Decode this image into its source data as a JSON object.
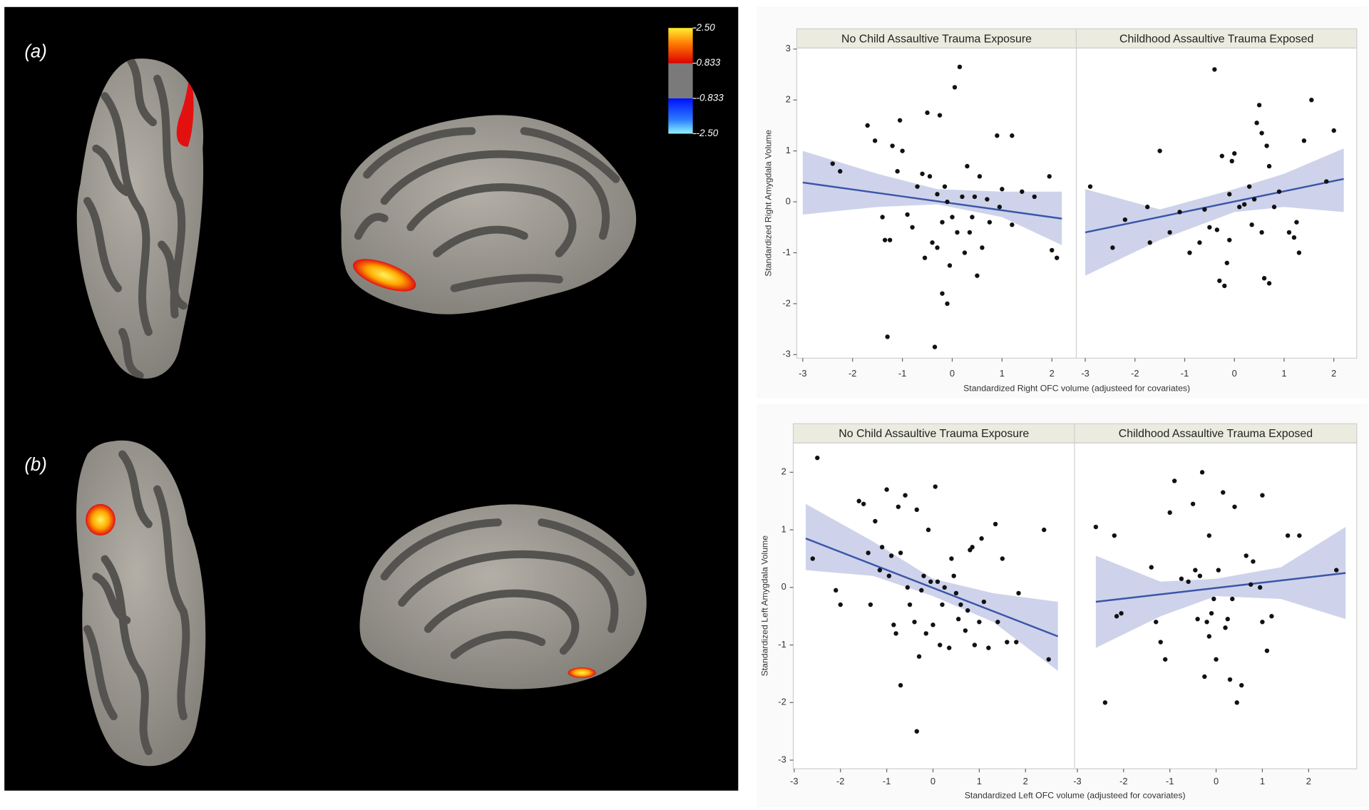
{
  "figure": {
    "panel_labels": [
      "(a)",
      "(b)"
    ],
    "colorbar": {
      "ticks": [
        {
          "value": 2.5,
          "label": "2.50"
        },
        0.833,
        -0.833,
        {
          "value": -2.5,
          "label": "-2.50"
        }
      ]
    }
  },
  "chart_data": [
    {
      "type": "scatter",
      "xlabel": "Standardized Right OFC volume (adjusteed for covariates)",
      "ylabel": "Standardized Right Amygdala Volume",
      "ylim": [
        -3.07,
        3.02
      ],
      "yticks": [
        -3,
        -2,
        -1,
        0,
        1,
        2,
        3
      ],
      "point_color": "#111111",
      "line_color": "#3b55a8",
      "band_color": "#c5cbe8",
      "panels": [
        {
          "title": "No Child Assaultive Trauma Exposure",
          "xlim": [
            -3.12,
            2.49
          ],
          "xticks": [
            -3,
            -2,
            -1,
            0,
            1,
            2
          ],
          "x": [
            -2.4,
            -2.25,
            -1.7,
            -1.55,
            -1.4,
            -1.35,
            -1.3,
            -1.25,
            -1.2,
            -1.1,
            -1.05,
            -1.0,
            -0.9,
            -0.8,
            -0.7,
            -0.55,
            -0.5,
            -0.45,
            -0.4,
            -0.35,
            -0.3,
            -0.25,
            -0.2,
            -0.15,
            -0.1,
            0.0,
            0.05,
            0.15,
            0.2,
            0.25,
            0.3,
            0.35,
            -0.05,
            -0.2,
            -0.1,
            0.45,
            0.5,
            0.55,
            0.7,
            0.75,
            0.9,
            0.95,
            1.0,
            1.2,
            1.2,
            1.4,
            1.65,
            1.95,
            2.0,
            2.1,
            -0.6,
            0.1,
            0.6,
            -0.3,
            0.4
          ],
          "y": [
            0.75,
            0.6,
            1.5,
            1.2,
            -0.3,
            -0.75,
            -2.65,
            -0.75,
            1.1,
            0.6,
            1.6,
            1.0,
            -0.25,
            -0.5,
            0.3,
            -1.1,
            1.75,
            0.5,
            -0.8,
            -2.85,
            0.15,
            1.7,
            -0.4,
            0.3,
            0.0,
            -0.3,
            2.25,
            2.65,
            0.1,
            -1.0,
            0.7,
            -0.6,
            -1.25,
            -1.8,
            -2.0,
            0.1,
            -1.45,
            0.5,
            0.05,
            -0.4,
            1.3,
            -0.1,
            0.25,
            1.3,
            -0.45,
            0.2,
            0.1,
            0.5,
            -0.95,
            -1.1,
            0.55,
            -0.6,
            -0.9,
            -0.9,
            -0.3
          ],
          "fit": {
            "x": [
              -3.0,
              2.2
            ],
            "y": [
              0.38,
              -0.33
            ]
          },
          "band": {
            "x": [
              -3.0,
              -1.5,
              -0.3,
              1.0,
              2.2
            ],
            "lower": [
              -0.25,
              -0.1,
              -0.05,
              -0.3,
              -0.85
            ],
            "upper": [
              1.0,
              0.55,
              0.25,
              0.2,
              0.2
            ]
          }
        },
        {
          "title": "Childhood Assaultive Trauma Exposed",
          "xlim": [
            -3.18,
            2.46
          ],
          "xticks": [
            -3,
            -2,
            -1,
            0,
            1,
            2
          ],
          "x": [
            -2.9,
            -2.45,
            -2.2,
            -1.75,
            -1.7,
            -1.5,
            -1.3,
            -1.1,
            -0.9,
            -0.7,
            -0.6,
            -0.5,
            -0.4,
            -0.35,
            -0.3,
            -0.25,
            -0.2,
            -0.15,
            -0.1,
            -0.05,
            0.0,
            0.1,
            0.2,
            0.3,
            0.35,
            0.45,
            0.5,
            0.55,
            0.6,
            0.65,
            0.7,
            0.8,
            0.9,
            1.1,
            1.2,
            1.3,
            1.4,
            1.55,
            1.85,
            2.0,
            0.7,
            -0.1,
            0.4,
            1.25,
            0.55
          ],
          "y": [
            0.3,
            -0.9,
            -0.35,
            -0.1,
            -0.8,
            1.0,
            -0.6,
            -0.2,
            -1.0,
            -0.8,
            -0.15,
            -0.5,
            2.6,
            -0.55,
            -1.55,
            0.9,
            -1.65,
            -1.2,
            0.15,
            0.8,
            0.95,
            -0.1,
            -0.05,
            0.3,
            -0.45,
            1.55,
            1.9,
            -0.6,
            -1.5,
            1.1,
            -1.6,
            -0.1,
            0.2,
            -0.6,
            -0.7,
            -1.0,
            1.2,
            2.0,
            0.4,
            1.4,
            0.7,
            -0.75,
            0.05,
            -0.4,
            1.35
          ],
          "fit": {
            "x": [
              -3.0,
              2.2
            ],
            "y": [
              -0.6,
              0.45
            ]
          },
          "band": {
            "x": [
              -3.0,
              -1.5,
              0.0,
              1.0,
              2.2
            ],
            "lower": [
              -1.45,
              -0.75,
              -0.2,
              -0.1,
              -0.2
            ],
            "upper": [
              0.25,
              -0.15,
              0.25,
              0.55,
              1.05
            ]
          }
        }
      ]
    },
    {
      "type": "scatter",
      "xlabel": "Standardized Left OFC volume (adjusteed for covariates)",
      "ylabel": "Standardized Left Amygdala Volume",
      "ylim": [
        -3.15,
        2.51
      ],
      "yticks": [
        -3,
        -2,
        -1,
        0,
        1,
        2
      ],
      "point_color": "#111111",
      "line_color": "#3b55a8",
      "band_color": "#c5cbe8",
      "panels": [
        {
          "title": "No Child Assaultive Trauma Exposure",
          "xlim": [
            -3.02,
            3.06
          ],
          "xticks": [
            -3,
            -2,
            -1,
            0,
            1,
            2
          ],
          "x": [
            -2.5,
            -2.6,
            -2.1,
            -2.0,
            -1.6,
            -1.5,
            -1.4,
            -1.35,
            -1.25,
            -1.1,
            -1.0,
            -0.95,
            -0.9,
            -0.85,
            -0.8,
            -0.75,
            -0.7,
            -0.6,
            -0.55,
            -0.5,
            -0.4,
            -0.35,
            -0.3,
            -0.35,
            -0.25,
            -0.2,
            -0.15,
            -0.1,
            -0.05,
            0.0,
            0.05,
            0.1,
            0.15,
            0.2,
            0.25,
            0.35,
            0.4,
            0.45,
            0.5,
            0.6,
            0.7,
            0.75,
            0.8,
            0.85,
            0.9,
            1.0,
            1.05,
            1.1,
            1.2,
            1.35,
            1.5,
            1.6,
            1.8,
            1.85,
            2.4,
            2.5,
            -0.7,
            1.4,
            -1.15,
            0.55
          ],
          "y": [
            2.25,
            0.5,
            -0.05,
            -0.3,
            1.5,
            1.45,
            0.6,
            -0.3,
            1.15,
            0.7,
            1.7,
            0.2,
            0.55,
            -0.65,
            -0.8,
            1.4,
            0.6,
            1.6,
            0.0,
            -0.3,
            -0.6,
            1.35,
            -1.2,
            -2.5,
            -0.05,
            0.2,
            -0.8,
            1.0,
            0.1,
            -0.65,
            1.75,
            0.1,
            -1.0,
            -0.3,
            0.0,
            -1.05,
            0.5,
            0.2,
            -0.1,
            -0.3,
            -0.75,
            -0.4,
            0.65,
            0.7,
            -1.0,
            -0.6,
            0.85,
            -0.25,
            -1.05,
            1.1,
            0.5,
            -0.95,
            -0.95,
            -0.1,
            1.0,
            -1.25,
            -1.7,
            -0.6,
            0.3,
            -0.55
          ],
          "fit": {
            "x": [
              -2.75,
              2.7
            ],
            "y": [
              0.85,
              -0.85
            ]
          },
          "band": {
            "x": [
              -2.75,
              -1.3,
              0.0,
              1.3,
              2.7
            ],
            "lower": [
              0.3,
              0.2,
              -0.15,
              -0.6,
              -1.45
            ],
            "upper": [
              1.45,
              0.8,
              0.15,
              -0.1,
              -0.25
            ]
          }
        },
        {
          "title": "Childhood Assaultive Trauma Exposed",
          "xlim": [
            -3.06,
            3.04
          ],
          "xticks": [
            -3,
            -2,
            -1,
            0,
            1,
            2
          ],
          "x": [
            -2.6,
            -2.4,
            -2.2,
            -2.15,
            -2.05,
            -1.4,
            -1.3,
            -1.2,
            -1.1,
            -1.0,
            -0.9,
            -0.75,
            -0.6,
            -0.5,
            -0.45,
            -0.4,
            -0.35,
            -0.3,
            -0.25,
            -0.2,
            -0.15,
            -0.1,
            -0.05,
            0.0,
            0.05,
            0.15,
            0.2,
            0.25,
            0.3,
            0.35,
            0.4,
            0.45,
            0.55,
            0.65,
            0.75,
            0.8,
            0.95,
            1.0,
            1.0,
            1.1,
            1.2,
            1.55,
            1.8,
            2.6,
            -0.15
          ],
          "y": [
            1.05,
            -2.0,
            0.9,
            -0.5,
            -0.45,
            0.35,
            -0.6,
            -0.95,
            -1.25,
            1.3,
            1.85,
            0.15,
            0.1,
            1.45,
            0.3,
            -0.55,
            0.2,
            2.0,
            -1.55,
            -0.6,
            0.9,
            -0.45,
            -0.2,
            -1.25,
            0.3,
            1.65,
            -0.7,
            -0.55,
            -1.6,
            -0.2,
            1.4,
            -2.0,
            -1.7,
            0.55,
            0.05,
            0.45,
            0.0,
            1.6,
            -0.6,
            -1.1,
            -0.5,
            0.9,
            0.9,
            0.3,
            -0.85
          ],
          "fit": {
            "x": [
              -2.6,
              2.8
            ],
            "y": [
              -0.25,
              0.25
            ]
          },
          "band": {
            "x": [
              -2.6,
              -1.2,
              0.0,
              1.4,
              2.8
            ],
            "lower": [
              -1.05,
              -0.5,
              -0.15,
              -0.2,
              -0.55
            ],
            "upper": [
              0.55,
              0.1,
              0.15,
              0.35,
              1.05
            ]
          }
        }
      ]
    }
  ]
}
